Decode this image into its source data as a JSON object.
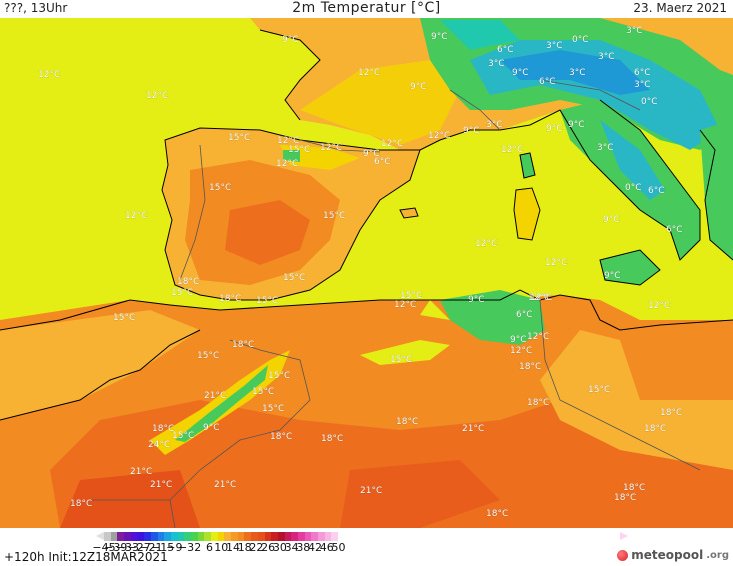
{
  "header": {
    "left": "???, 13Uhr",
    "title": "2m Temperatur [°C]",
    "date": "23. Maerz 2021"
  },
  "colors": {
    "sea": "#e5ee14",
    "sea_south": "#f4d400",
    "land_warm": "#f7b233",
    "land_hot": "#f28b21",
    "land_hotter": "#ed6f1e",
    "land_hottest": "#e4521a",
    "alps_green": "#48c95c",
    "alps_cold": "#29b7c6",
    "alps_coldest": "#1f98d6",
    "coast_line": "#000000",
    "border_line": "#555555"
  },
  "temp_labels": [
    "12°C",
    "12°C",
    "9°C",
    "12°C",
    "9°C",
    "6°C",
    "3°C",
    "0°C",
    "3°C",
    "3°C",
    "9°C",
    "6°C",
    "3°C",
    "6°C",
    "3°C",
    "0°C",
    "3°C",
    "9°C",
    "9°C",
    "9°C",
    "3°C",
    "15°C",
    "12°C",
    "15°C",
    "12°C",
    "12°C",
    "9°C",
    "6°C",
    "12°C",
    "12°C",
    "9°C",
    "3°C",
    "12°C",
    "15°C",
    "12°C",
    "15°C",
    "12°C",
    "0°C",
    "6°C",
    "9°C",
    "6°C",
    "12°C",
    "12°C",
    "12°C",
    "9°C",
    "18°C",
    "15°C",
    "18°C",
    "15°C",
    "15°C",
    "15°C",
    "12°C",
    "9°C",
    "12°C",
    "6°C",
    "12°C",
    "15°C",
    "18°C",
    "15°C",
    "9°C",
    "12°C",
    "15°C",
    "18°C",
    "15°C",
    "21°C",
    "15°C",
    "15°C",
    "18°C",
    "18°C",
    "18°C",
    "18°C",
    "21°C",
    "24°C",
    "15°C",
    "9°C",
    "18°C",
    "18°C",
    "18°C",
    "15°C",
    "21°C",
    "21°C",
    "21°C",
    "21°C",
    "18°C",
    "18°C",
    "18°C",
    "18°C"
  ],
  "colorbar": {
    "ticks": [
      "−45",
      "−39",
      "−33",
      "−27",
      "−21",
      "−15",
      "−9",
      "−3",
      "2",
      "6",
      "10",
      "14",
      "18",
      "22",
      "26",
      "30",
      "34",
      "38",
      "42",
      "46",
      "50"
    ],
    "colors": [
      "#c8c8c8",
      "#a0a0a0",
      "#7c1f9c",
      "#6a14b8",
      "#5410d4",
      "#3b14e0",
      "#2a2fe6",
      "#1f56ea",
      "#1f7ee8",
      "#1aa4e0",
      "#19c0d4",
      "#20c9ae",
      "#33cf7a",
      "#48d250",
      "#7ad836",
      "#aee22a",
      "#e5ee14",
      "#f4d400",
      "#f7b233",
      "#f59a28",
      "#f28b21",
      "#ed6f1e",
      "#e85a1c",
      "#e4521a",
      "#d8341c",
      "#c81f22",
      "#b3132a",
      "#c71a5c",
      "#d8227e",
      "#e23d9e",
      "#ea59b8",
      "#f079cc",
      "#f59ad8",
      "#f8b6e2",
      "#fbcfee"
    ]
  },
  "footer": {
    "init": "+120h Init:12Z18MAR2021",
    "logo_main": "meteopool",
    "logo_tld": ".org"
  }
}
